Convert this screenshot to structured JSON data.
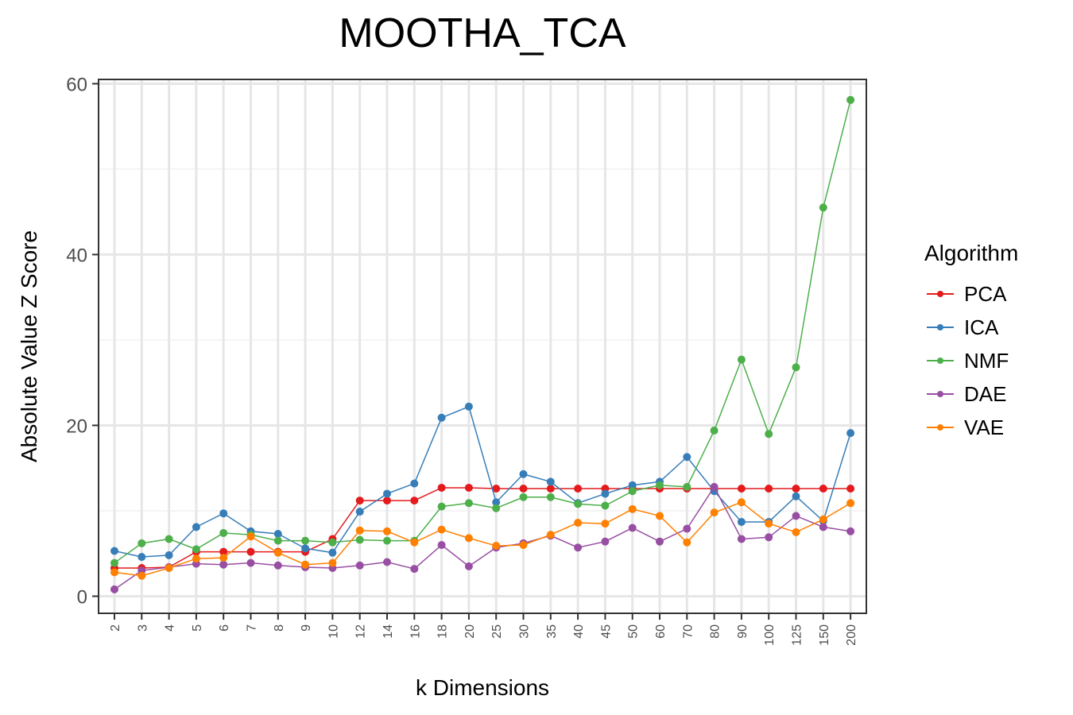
{
  "chart_data": {
    "type": "line",
    "title": "MOOTHA_TCA",
    "xlabel": "k Dimensions",
    "ylabel": "Absolute Value Z Score",
    "ylim": [
      -2,
      60.5
    ],
    "yticks": [
      "0",
      "20",
      "40",
      "60"
    ],
    "grid": true,
    "legend": {
      "title": "Algorithm",
      "placement": "right"
    },
    "categories": [
      "2",
      "3",
      "4",
      "5",
      "6",
      "7",
      "8",
      "9",
      "10",
      "12",
      "14",
      "16",
      "18",
      "20",
      "25",
      "30",
      "35",
      "40",
      "45",
      "50",
      "60",
      "70",
      "80",
      "90",
      "100",
      "125",
      "150",
      "200"
    ],
    "series": [
      {
        "name": "PCA",
        "color": "#E41A1C",
        "values": [
          3.3,
          3.3,
          3.4,
          5.2,
          5.2,
          5.2,
          5.2,
          5.2,
          6.7,
          11.2,
          11.2,
          11.2,
          12.7,
          12.7,
          12.6,
          12.6,
          12.6,
          12.6,
          12.6,
          12.6,
          12.6,
          12.6,
          12.6,
          12.6,
          12.6,
          12.6,
          12.6,
          12.6
        ]
      },
      {
        "name": "ICA",
        "color": "#377EB8",
        "values": [
          5.3,
          4.6,
          4.8,
          8.1,
          9.7,
          7.6,
          7.3,
          5.6,
          5.1,
          9.9,
          12.0,
          13.2,
          20.9,
          22.2,
          11.0,
          14.3,
          13.4,
          10.9,
          12.0,
          13.0,
          13.4,
          16.3,
          12.3,
          8.7,
          8.7,
          11.7,
          8.8,
          19.1
        ]
      },
      {
        "name": "NMF",
        "color": "#4DAF4A",
        "values": [
          3.9,
          6.2,
          6.7,
          5.5,
          7.4,
          7.2,
          6.5,
          6.5,
          6.3,
          6.6,
          6.5,
          6.5,
          10.5,
          10.9,
          10.3,
          11.6,
          11.6,
          10.8,
          10.6,
          12.3,
          13.0,
          12.8,
          19.4,
          27.7,
          19.0,
          26.8,
          45.5,
          58.1
        ]
      },
      {
        "name": "DAE",
        "color": "#984EA3",
        "values": [
          0.8,
          3.0,
          3.4,
          3.8,
          3.7,
          3.9,
          3.6,
          3.4,
          3.3,
          3.6,
          4.0,
          3.2,
          6.0,
          3.5,
          5.7,
          6.2,
          7.1,
          5.7,
          6.4,
          8.0,
          6.4,
          7.9,
          12.8,
          6.7,
          6.9,
          9.4,
          8.1,
          7.6
        ]
      },
      {
        "name": "VAE",
        "color": "#FF7F00",
        "values": [
          2.8,
          2.4,
          3.3,
          4.4,
          4.5,
          7.0,
          5.1,
          3.7,
          3.9,
          7.7,
          7.6,
          6.3,
          7.8,
          6.8,
          5.9,
          6.0,
          7.2,
          8.6,
          8.5,
          10.2,
          9.4,
          6.3,
          9.8,
          11.0,
          8.5,
          7.5,
          9.0,
          10.9
        ]
      }
    ]
  }
}
